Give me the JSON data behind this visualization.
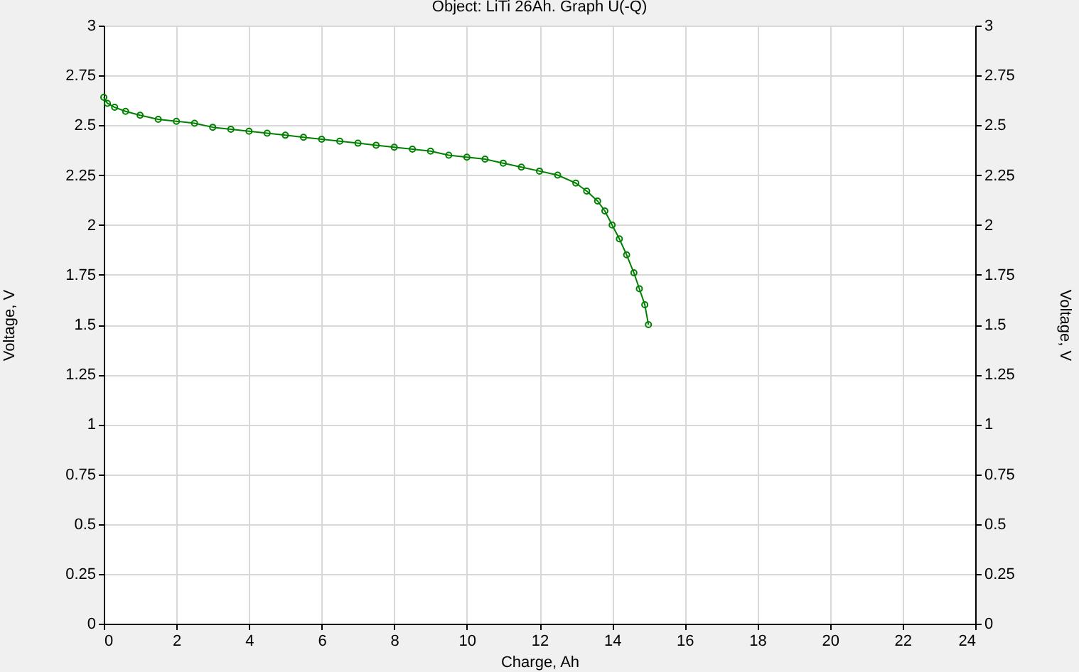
{
  "chart_data": {
    "type": "line",
    "title": "Object: LiTi 26Ah. Graph U(-Q)",
    "xlabel": "Charge, Ah",
    "ylabel": "Voltage, V",
    "y2label": "Voltage, V",
    "xlim": [
      0,
      24
    ],
    "xticks": [
      0,
      2,
      4,
      6,
      8,
      10,
      12,
      14,
      16,
      18,
      20,
      22,
      24
    ],
    "ylim": [
      0,
      3
    ],
    "yticks": [
      0,
      0.25,
      0.5,
      0.75,
      1,
      1.25,
      1.5,
      1.75,
      2,
      2.25,
      2.5,
      2.75,
      3
    ],
    "y2lim": [
      0,
      3
    ],
    "y2ticks": [
      0,
      0.25,
      0.5,
      0.75,
      1,
      1.25,
      1.5,
      1.75,
      2,
      2.25,
      2.5,
      2.75,
      3
    ],
    "grid": true,
    "marker": "circle",
    "line_style": "solid",
    "series": [
      {
        "color": "#008000",
        "x": [
          0,
          0.1,
          0.3,
          0.6,
          1,
          1.5,
          2,
          2.5,
          3,
          3.5,
          4,
          4.5,
          5,
          5.5,
          6,
          6.5,
          7,
          7.5,
          8,
          8.5,
          9,
          9.5,
          10,
          10.5,
          11,
          11.5,
          12,
          12.5,
          13,
          13.3,
          13.6,
          13.8,
          14,
          14.2,
          14.4,
          14.6,
          14.75,
          14.9,
          15
        ],
        "values": [
          2.64,
          2.61,
          2.59,
          2.57,
          2.55,
          2.53,
          2.52,
          2.51,
          2.49,
          2.48,
          2.47,
          2.46,
          2.45,
          2.44,
          2.43,
          2.42,
          2.41,
          2.4,
          2.39,
          2.38,
          2.37,
          2.35,
          2.34,
          2.33,
          2.31,
          2.29,
          2.27,
          2.25,
          2.21,
          2.17,
          2.12,
          2.07,
          2.0,
          1.93,
          1.85,
          1.76,
          1.68,
          1.6,
          1.5
        ]
      }
    ]
  }
}
